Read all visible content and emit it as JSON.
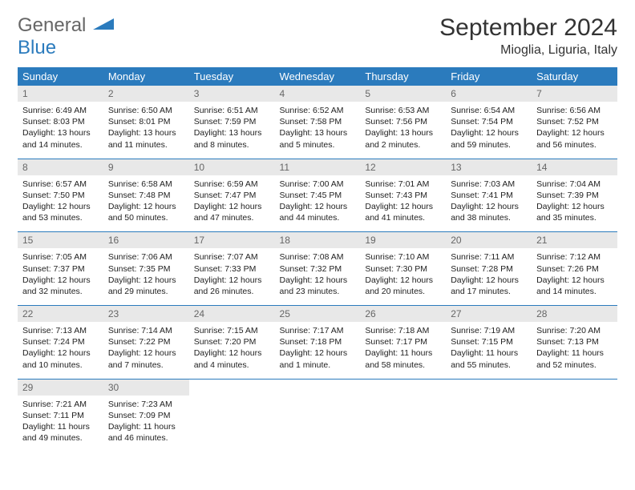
{
  "brand": {
    "top": "General",
    "bottom": "Blue"
  },
  "title": "September 2024",
  "location": "Mioglia, Liguria, Italy",
  "colors": {
    "header_bg": "#2b7bbd",
    "header_fg": "#ffffff",
    "daynum_bg": "#e8e8e8",
    "daynum_fg": "#666666",
    "rule": "#2b7bbd",
    "text": "#222222",
    "brand_gray": "#666666",
    "brand_blue": "#2b7bbd"
  },
  "day_headers": [
    "Sunday",
    "Monday",
    "Tuesday",
    "Wednesday",
    "Thursday",
    "Friday",
    "Saturday"
  ],
  "weeks": [
    [
      {
        "n": "1",
        "sr": "Sunrise: 6:49 AM",
        "ss": "Sunset: 8:03 PM",
        "d1": "Daylight: 13 hours",
        "d2": "and 14 minutes."
      },
      {
        "n": "2",
        "sr": "Sunrise: 6:50 AM",
        "ss": "Sunset: 8:01 PM",
        "d1": "Daylight: 13 hours",
        "d2": "and 11 minutes."
      },
      {
        "n": "3",
        "sr": "Sunrise: 6:51 AM",
        "ss": "Sunset: 7:59 PM",
        "d1": "Daylight: 13 hours",
        "d2": "and 8 minutes."
      },
      {
        "n": "4",
        "sr": "Sunrise: 6:52 AM",
        "ss": "Sunset: 7:58 PM",
        "d1": "Daylight: 13 hours",
        "d2": "and 5 minutes."
      },
      {
        "n": "5",
        "sr": "Sunrise: 6:53 AM",
        "ss": "Sunset: 7:56 PM",
        "d1": "Daylight: 13 hours",
        "d2": "and 2 minutes."
      },
      {
        "n": "6",
        "sr": "Sunrise: 6:54 AM",
        "ss": "Sunset: 7:54 PM",
        "d1": "Daylight: 12 hours",
        "d2": "and 59 minutes."
      },
      {
        "n": "7",
        "sr": "Sunrise: 6:56 AM",
        "ss": "Sunset: 7:52 PM",
        "d1": "Daylight: 12 hours",
        "d2": "and 56 minutes."
      }
    ],
    [
      {
        "n": "8",
        "sr": "Sunrise: 6:57 AM",
        "ss": "Sunset: 7:50 PM",
        "d1": "Daylight: 12 hours",
        "d2": "and 53 minutes."
      },
      {
        "n": "9",
        "sr": "Sunrise: 6:58 AM",
        "ss": "Sunset: 7:48 PM",
        "d1": "Daylight: 12 hours",
        "d2": "and 50 minutes."
      },
      {
        "n": "10",
        "sr": "Sunrise: 6:59 AM",
        "ss": "Sunset: 7:47 PM",
        "d1": "Daylight: 12 hours",
        "d2": "and 47 minutes."
      },
      {
        "n": "11",
        "sr": "Sunrise: 7:00 AM",
        "ss": "Sunset: 7:45 PM",
        "d1": "Daylight: 12 hours",
        "d2": "and 44 minutes."
      },
      {
        "n": "12",
        "sr": "Sunrise: 7:01 AM",
        "ss": "Sunset: 7:43 PM",
        "d1": "Daylight: 12 hours",
        "d2": "and 41 minutes."
      },
      {
        "n": "13",
        "sr": "Sunrise: 7:03 AM",
        "ss": "Sunset: 7:41 PM",
        "d1": "Daylight: 12 hours",
        "d2": "and 38 minutes."
      },
      {
        "n": "14",
        "sr": "Sunrise: 7:04 AM",
        "ss": "Sunset: 7:39 PM",
        "d1": "Daylight: 12 hours",
        "d2": "and 35 minutes."
      }
    ],
    [
      {
        "n": "15",
        "sr": "Sunrise: 7:05 AM",
        "ss": "Sunset: 7:37 PM",
        "d1": "Daylight: 12 hours",
        "d2": "and 32 minutes."
      },
      {
        "n": "16",
        "sr": "Sunrise: 7:06 AM",
        "ss": "Sunset: 7:35 PM",
        "d1": "Daylight: 12 hours",
        "d2": "and 29 minutes."
      },
      {
        "n": "17",
        "sr": "Sunrise: 7:07 AM",
        "ss": "Sunset: 7:33 PM",
        "d1": "Daylight: 12 hours",
        "d2": "and 26 minutes."
      },
      {
        "n": "18",
        "sr": "Sunrise: 7:08 AM",
        "ss": "Sunset: 7:32 PM",
        "d1": "Daylight: 12 hours",
        "d2": "and 23 minutes."
      },
      {
        "n": "19",
        "sr": "Sunrise: 7:10 AM",
        "ss": "Sunset: 7:30 PM",
        "d1": "Daylight: 12 hours",
        "d2": "and 20 minutes."
      },
      {
        "n": "20",
        "sr": "Sunrise: 7:11 AM",
        "ss": "Sunset: 7:28 PM",
        "d1": "Daylight: 12 hours",
        "d2": "and 17 minutes."
      },
      {
        "n": "21",
        "sr": "Sunrise: 7:12 AM",
        "ss": "Sunset: 7:26 PM",
        "d1": "Daylight: 12 hours",
        "d2": "and 14 minutes."
      }
    ],
    [
      {
        "n": "22",
        "sr": "Sunrise: 7:13 AM",
        "ss": "Sunset: 7:24 PM",
        "d1": "Daylight: 12 hours",
        "d2": "and 10 minutes."
      },
      {
        "n": "23",
        "sr": "Sunrise: 7:14 AM",
        "ss": "Sunset: 7:22 PM",
        "d1": "Daylight: 12 hours",
        "d2": "and 7 minutes."
      },
      {
        "n": "24",
        "sr": "Sunrise: 7:15 AM",
        "ss": "Sunset: 7:20 PM",
        "d1": "Daylight: 12 hours",
        "d2": "and 4 minutes."
      },
      {
        "n": "25",
        "sr": "Sunrise: 7:17 AM",
        "ss": "Sunset: 7:18 PM",
        "d1": "Daylight: 12 hours",
        "d2": "and 1 minute."
      },
      {
        "n": "26",
        "sr": "Sunrise: 7:18 AM",
        "ss": "Sunset: 7:17 PM",
        "d1": "Daylight: 11 hours",
        "d2": "and 58 minutes."
      },
      {
        "n": "27",
        "sr": "Sunrise: 7:19 AM",
        "ss": "Sunset: 7:15 PM",
        "d1": "Daylight: 11 hours",
        "d2": "and 55 minutes."
      },
      {
        "n": "28",
        "sr": "Sunrise: 7:20 AM",
        "ss": "Sunset: 7:13 PM",
        "d1": "Daylight: 11 hours",
        "d2": "and 52 minutes."
      }
    ],
    [
      {
        "n": "29",
        "sr": "Sunrise: 7:21 AM",
        "ss": "Sunset: 7:11 PM",
        "d1": "Daylight: 11 hours",
        "d2": "and 49 minutes."
      },
      {
        "n": "30",
        "sr": "Sunrise: 7:23 AM",
        "ss": "Sunset: 7:09 PM",
        "d1": "Daylight: 11 hours",
        "d2": "and 46 minutes."
      },
      null,
      null,
      null,
      null,
      null
    ]
  ]
}
